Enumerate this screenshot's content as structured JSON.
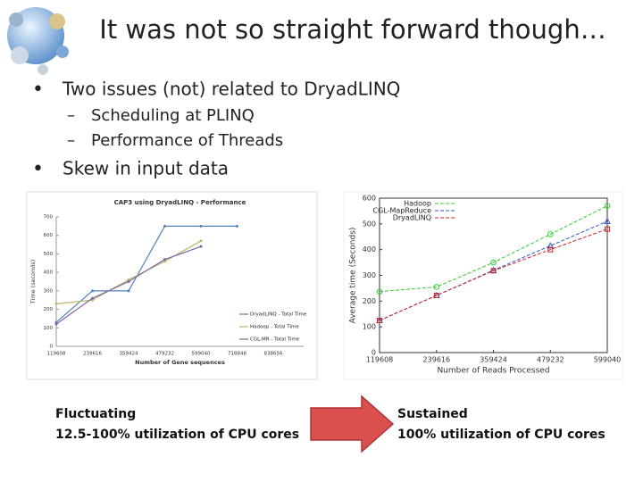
{
  "title": "It was not so straight forward though…",
  "bullets": [
    {
      "text": "Two issues (not) related to DryadLINQ",
      "subitems": [
        "Scheduling at PLINQ",
        "Performance of Threads"
      ]
    },
    {
      "text": "Skew in input data"
    }
  ],
  "captions": {
    "left": [
      "Fluctuating",
      "12.5-100% utilization of CPU cores"
    ],
    "right": [
      "Sustained",
      "100% utilization of CPU cores"
    ]
  },
  "chart_data": [
    {
      "type": "line",
      "title": "CAP3 using DryadLINQ - Performance",
      "x_label": "Number of Gene sequences",
      "y_label": "Time (seconds)",
      "categories": [
        "119608",
        "239616",
        "359424",
        "479232",
        "599040",
        "718848",
        "838656"
      ],
      "ylim": [
        0,
        700
      ],
      "yticks": [
        0,
        100,
        200,
        300,
        400,
        500,
        600,
        700
      ],
      "grid": false,
      "legend": "lower right",
      "series": [
        {
          "name": "DryadLINQ - Total Time",
          "color": "#4f81bd",
          "values": [
            130,
            300,
            300,
            650,
            650,
            650,
            null
          ]
        },
        {
          "name": "Hadoop - Total Time",
          "color": "#b5b86a",
          "values": [
            230,
            250,
            360,
            460,
            570,
            null,
            null
          ]
        },
        {
          "name": "CGL-MR - Total Time",
          "color": "#8064a2",
          "values": [
            120,
            260,
            350,
            470,
            540,
            null,
            null
          ]
        }
      ]
    },
    {
      "type": "line",
      "x_label": "Number of Reads Processed",
      "y_label": "Average time (Seconds)",
      "x": [
        119608,
        239616,
        359424,
        479232,
        599040
      ],
      "xlim": [
        119608,
        599040
      ],
      "xticks": [
        119608,
        239616,
        359424,
        479232,
        599040
      ],
      "ylim": [
        0,
        600
      ],
      "yticks": [
        0,
        100,
        200,
        300,
        400,
        500,
        600
      ],
      "grid": false,
      "legend": "upper left",
      "series": [
        {
          "name": "Hadoop",
          "color": "#33cc33",
          "values": [
            237,
            255,
            350,
            460,
            570
          ]
        },
        {
          "name": "CGL-MapReduce",
          "color": "#3355cc",
          "values": [
            125,
            222,
            320,
            415,
            510
          ]
        },
        {
          "name": "DryadLINQ",
          "color": "#cc2222",
          "values": [
            125,
            222,
            318,
            400,
            480
          ]
        }
      ]
    }
  ]
}
